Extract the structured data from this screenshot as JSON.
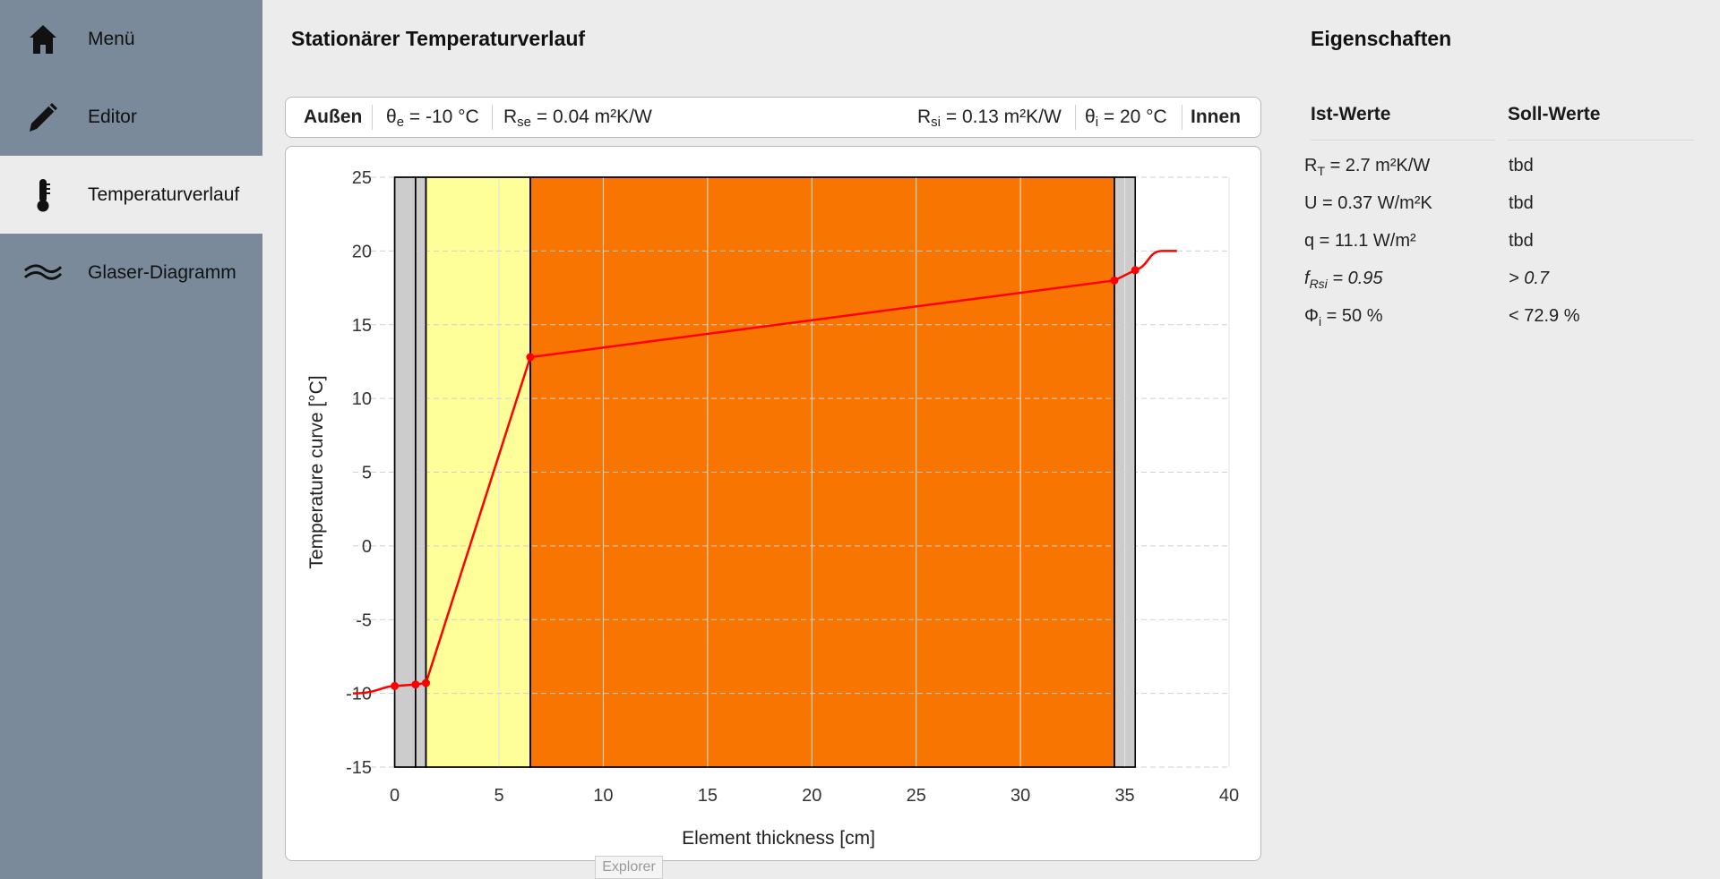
{
  "nav": {
    "items": [
      {
        "label": "Menü",
        "icon": "home-icon"
      },
      {
        "label": "Editor",
        "icon": "pencil-icon"
      },
      {
        "label": "Temperaturverlauf",
        "icon": "thermometer-icon",
        "active": true
      },
      {
        "label": "Glaser-Diagramm",
        "icon": "waves-icon"
      }
    ]
  },
  "main": {
    "title": "Stationärer Temperaturverlauf"
  },
  "infobar": {
    "outside_label": "Außen",
    "theta_e": {
      "sym": "θ",
      "sub": "e",
      "rest": " = -10 °C"
    },
    "r_se": {
      "sym": "R",
      "sub": "se",
      "rest": " = 0.04 m²K/W"
    },
    "r_si": {
      "sym": "R",
      "sub": "si",
      "rest": " = 0.13 m²K/W"
    },
    "theta_i": {
      "sym": "θ",
      "sub": "i",
      "rest": " = 20 °C"
    },
    "inside_label": "Innen"
  },
  "properties": {
    "title": "Eigenschaften",
    "col_actual": "Ist-Werte",
    "col_target": "Soll-Werte",
    "rows": [
      {
        "sym": "R",
        "sub": "T",
        "rest": " = 2.7 m²K/W",
        "target": "tbd",
        "italic": false
      },
      {
        "sym": "U",
        "sub": "",
        "rest": " = 0.37 W/m²K",
        "target": "tbd",
        "italic": false
      },
      {
        "sym": "q",
        "sub": "",
        "rest": " = 11.1 W/m²",
        "target": "tbd",
        "italic": false
      },
      {
        "sym": "f",
        "sub": "Rsi",
        "rest": " = 0.95",
        "target": "> 0.7",
        "italic": true
      },
      {
        "sym": "Φ",
        "sub": "i",
        "rest": " = 50 %",
        "target": "< 72.9 %",
        "italic": false
      }
    ]
  },
  "explorer_label": "Explorer",
  "colors": {
    "sidebar": "#7a8a9a",
    "layer_gray": "#cccccc",
    "layer_yellow": "#ffff99",
    "layer_orange": "#f77500",
    "curve": "#ff0000"
  },
  "chart_data": {
    "type": "line",
    "xlabel": "Element thickness [cm]",
    "ylabel": "Temperature curve [°C]",
    "xlim": [
      -2,
      40
    ],
    "ylim": [
      -15,
      25
    ],
    "xticks": [
      0,
      5,
      10,
      15,
      20,
      25,
      30,
      35,
      40
    ],
    "yticks": [
      25,
      20,
      15,
      10,
      5,
      0,
      -5,
      -10,
      -15
    ],
    "grid": "dashed-horizontal",
    "layers": [
      {
        "x0": 0.0,
        "x1": 1.0,
        "color": "#cccccc"
      },
      {
        "x0": 1.0,
        "x1": 1.5,
        "color": "#cccccc"
      },
      {
        "x0": 1.5,
        "x1": 6.5,
        "color": "#ffff99"
      },
      {
        "x0": 6.5,
        "x1": 34.5,
        "color": "#f77500"
      },
      {
        "x0": 34.5,
        "x1": 35.5,
        "color": "#cccccc"
      }
    ],
    "series": [
      {
        "points": [
          [
            0.0,
            -9.5
          ],
          [
            1.0,
            -9.4
          ],
          [
            1.5,
            -9.3
          ],
          [
            6.5,
            12.8
          ],
          [
            34.5,
            18.0
          ],
          [
            35.5,
            18.7
          ]
        ],
        "start": [
          -2.0,
          -10.0
        ],
        "end": [
          37.5,
          20.0
        ]
      }
    ]
  }
}
